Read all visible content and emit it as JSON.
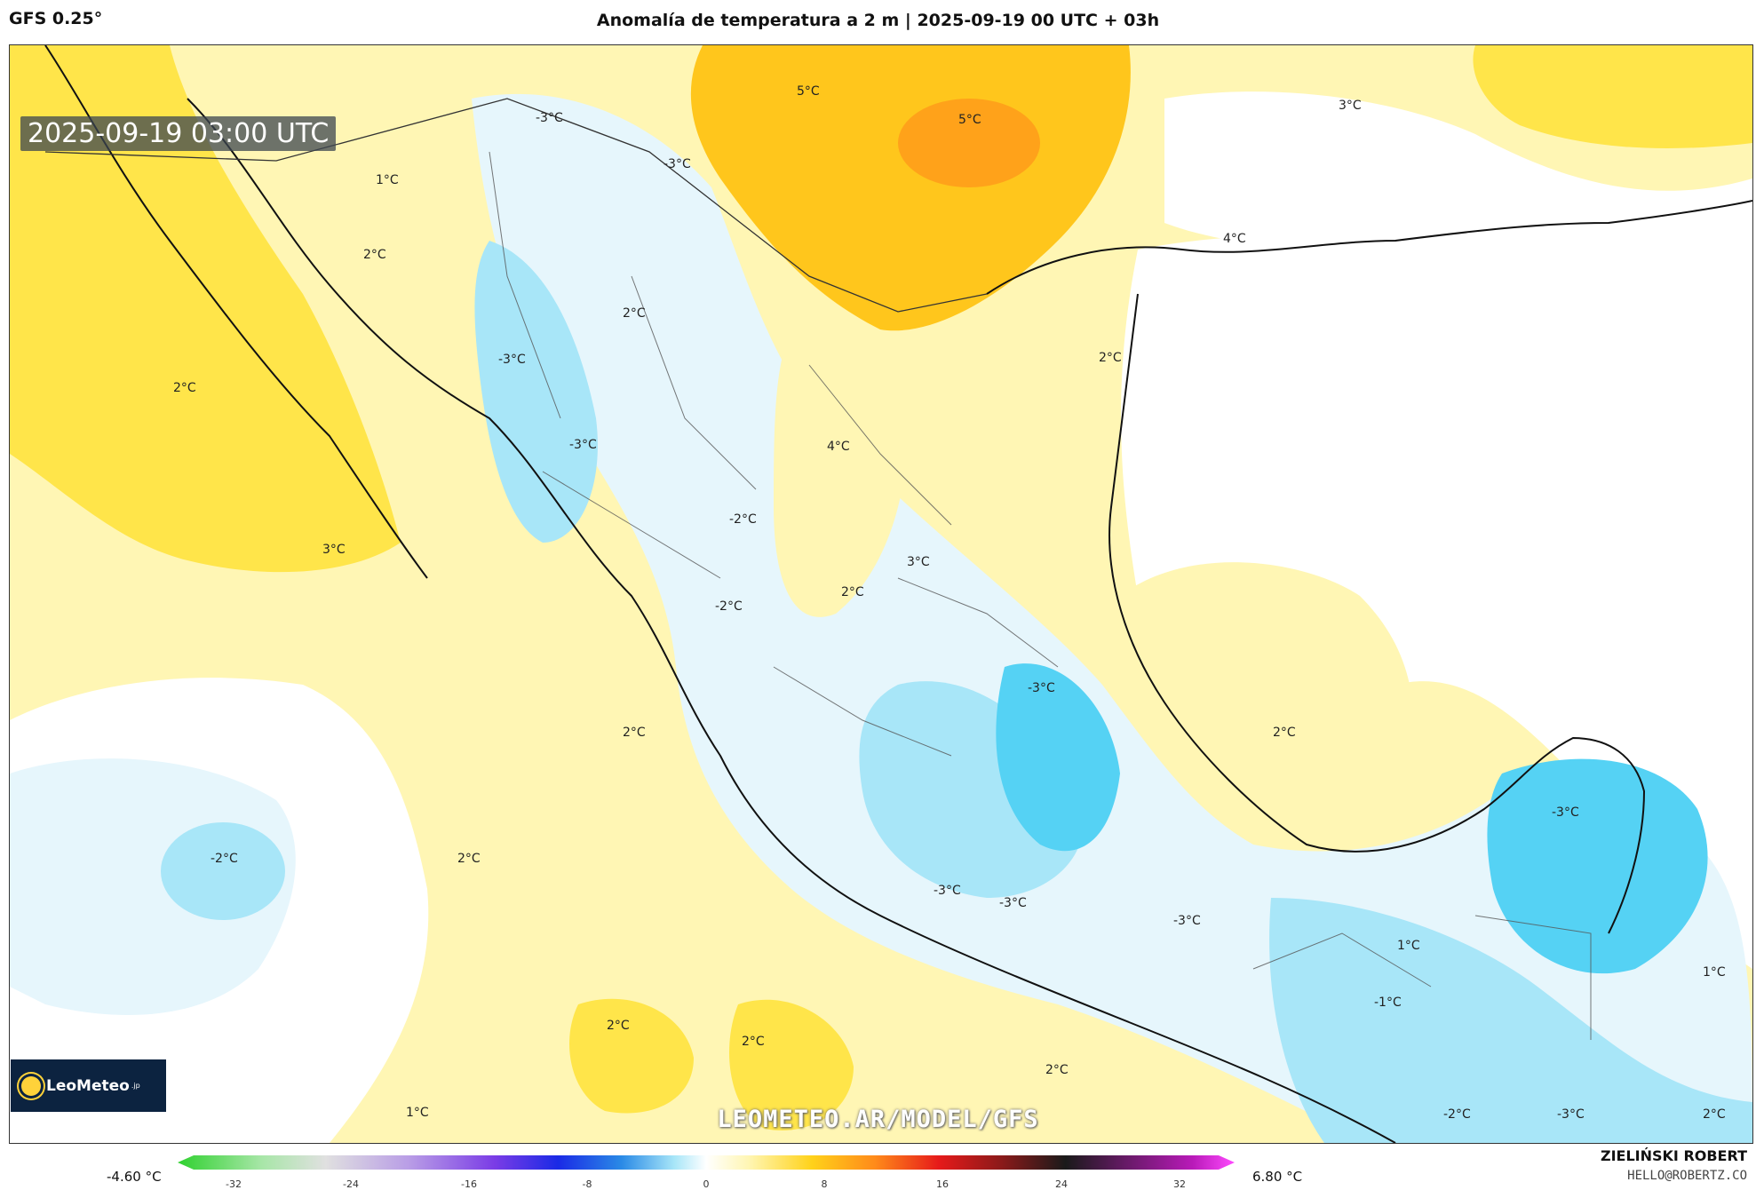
{
  "header": {
    "model": "GFS 0.25°",
    "title": "Anomalía de temperatura a 2 m | 2025-09-19 00 UTC + 03h"
  },
  "map": {
    "timestamp": "2025-09-19 03:00 UTC",
    "watermark": "LEOMETEO.AR/MODEL/GFS",
    "logo_text": "LeoMeteo",
    "logo_suffix": ".jp",
    "colors": {
      "background_warm": "#fff6b4",
      "warm_2": "#ffe54a",
      "warm_3": "#ffc61c",
      "warm_5": "#ffa21a",
      "cool_1": "#e6f6fc",
      "cool_2": "#a8e6f8",
      "cool_3": "#55d2f4",
      "neutral": "#ffffff"
    },
    "labels": [
      {
        "id": "l1",
        "text": "5°C"
      },
      {
        "id": "l2",
        "text": "5°C"
      },
      {
        "id": "l3",
        "text": "3°C"
      },
      {
        "id": "l4",
        "text": "-3°C"
      },
      {
        "id": "l5",
        "text": "-3°C"
      },
      {
        "id": "l6",
        "text": "1°C"
      },
      {
        "id": "l7",
        "text": "2°C"
      },
      {
        "id": "l8",
        "text": "2°C"
      },
      {
        "id": "l9",
        "text": "4°C"
      },
      {
        "id": "l10",
        "text": "-3°C"
      },
      {
        "id": "l11",
        "text": "2°C"
      },
      {
        "id": "l12",
        "text": "2°C"
      },
      {
        "id": "l13",
        "text": "-3°C"
      },
      {
        "id": "l14",
        "text": "4°C"
      },
      {
        "id": "l15",
        "text": "-2°C"
      },
      {
        "id": "l16",
        "text": "3°C"
      },
      {
        "id": "l17",
        "text": "2°C"
      },
      {
        "id": "l18",
        "text": "3°C"
      },
      {
        "id": "l19",
        "text": "-2°C"
      },
      {
        "id": "l20",
        "text": "-3°C"
      },
      {
        "id": "l21",
        "text": "2°C"
      },
      {
        "id": "l22",
        "text": "2°C"
      },
      {
        "id": "l23",
        "text": "-3°C"
      },
      {
        "id": "l24",
        "text": "-2°C"
      },
      {
        "id": "l25",
        "text": "2°C"
      },
      {
        "id": "l26",
        "text": "-3°C"
      },
      {
        "id": "l27",
        "text": "-3°C"
      },
      {
        "id": "l28",
        "text": "-3°C"
      },
      {
        "id": "l29",
        "text": "1°C"
      },
      {
        "id": "l30",
        "text": "1°C"
      },
      {
        "id": "l31",
        "text": "-1°C"
      },
      {
        "id": "l32",
        "text": "2°C"
      },
      {
        "id": "l33",
        "text": "2°C"
      },
      {
        "id": "l34",
        "text": "2°C"
      },
      {
        "id": "l35",
        "text": "1°C"
      },
      {
        "id": "l36",
        "text": "-2°C"
      },
      {
        "id": "l37",
        "text": "-3°C"
      },
      {
        "id": "l38",
        "text": "2°C"
      }
    ]
  },
  "colorbar": {
    "min_label": "-4.60 °C",
    "max_label": "6.80 °C",
    "ticks": [
      "-32",
      "-24",
      "-16",
      "-8",
      "0",
      "8",
      "16",
      "24",
      "32"
    ],
    "gradient_colors": [
      "#2fd12f",
      "#a8e6a8",
      "#e0e0e0",
      "#b89ce6",
      "#7a3ce6",
      "#1a2ae6",
      "#2a8ae6",
      "#a8e6f8",
      "#ffffff",
      "#fff6b4",
      "#ffd21a",
      "#ff8a1a",
      "#e61a1a",
      "#8a1a1a",
      "#1a1a1a",
      "#6a1a6a",
      "#b81ab8",
      "#ff4aff"
    ]
  },
  "credits": {
    "name": "ZIELIŃSKI ROBERT",
    "email": "HELLO@ROBERTZ.CO"
  }
}
